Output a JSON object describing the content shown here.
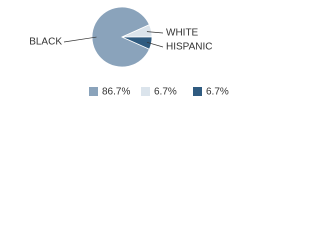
{
  "chart_data": {
    "type": "pie",
    "categories": [
      "BLACK",
      "WHITE",
      "HISPANIC"
    ],
    "values": [
      86.7,
      6.7,
      6.7
    ],
    "value_labels": [
      "86.7%",
      "6.7%",
      "6.7%"
    ],
    "colors": [
      "#8aa3bb",
      "#dbe4ec",
      "#2f5b80"
    ]
  }
}
